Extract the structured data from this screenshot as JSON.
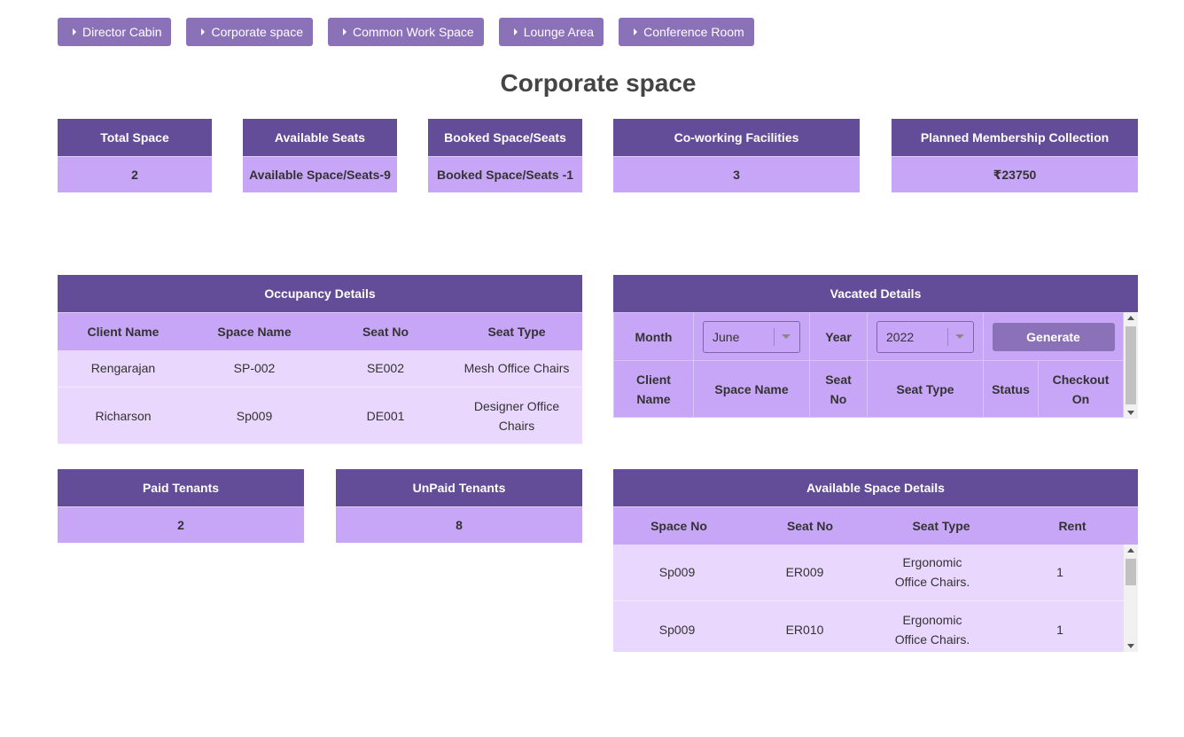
{
  "nav": [
    {
      "label": "Director Cabin"
    },
    {
      "label": "Corporate space"
    },
    {
      "label": "Common Work Space"
    },
    {
      "label": "Lounge Area"
    },
    {
      "label": "Conference Room"
    }
  ],
  "page_title": "Corporate space",
  "stats": {
    "total_space": {
      "label": "Total Space",
      "value": "2"
    },
    "available_seats": {
      "label": "Available Seats",
      "value": "Available Space/Seats-9"
    },
    "booked": {
      "label": "Booked Space/Seats",
      "value": "Booked Space/Seats -1"
    },
    "facilities": {
      "label": "Co-working Facilities",
      "value": "3"
    },
    "membership": {
      "label": "Planned Membership Collection",
      "value": "₹23750"
    }
  },
  "occupancy": {
    "title": "Occupancy Details",
    "columns": [
      "Client Name",
      "Space Name",
      "Seat No",
      "Seat Type"
    ],
    "rows": [
      [
        "Rengarajan",
        "SP-002",
        "SE002",
        "Mesh Office Chairs"
      ],
      [
        "Richarson",
        "Sp009",
        "DE001",
        "Designer Office Chairs"
      ]
    ]
  },
  "vacated": {
    "title": "Vacated Details",
    "month_label": "Month",
    "month_value": "June",
    "year_label": "Year",
    "year_value": "2022",
    "generate_label": "Generate",
    "columns": [
      "Client Name",
      "Space Name",
      "Seat No",
      "Seat Type",
      "Status",
      "Checkout On"
    ]
  },
  "tenants": {
    "paid": {
      "label": "Paid Tenants",
      "value": "2"
    },
    "unpaid": {
      "label": "UnPaid Tenants",
      "value": "8"
    }
  },
  "available": {
    "title": "Available Space Details",
    "columns": [
      "Space No",
      "Seat No",
      "Seat Type",
      "Rent"
    ],
    "rows": [
      [
        "Sp009",
        "ER009",
        "Ergonomic Office Chairs.",
        "1"
      ],
      [
        "Sp009",
        "ER010",
        "Ergonomic Office Chairs.",
        "1"
      ]
    ]
  }
}
